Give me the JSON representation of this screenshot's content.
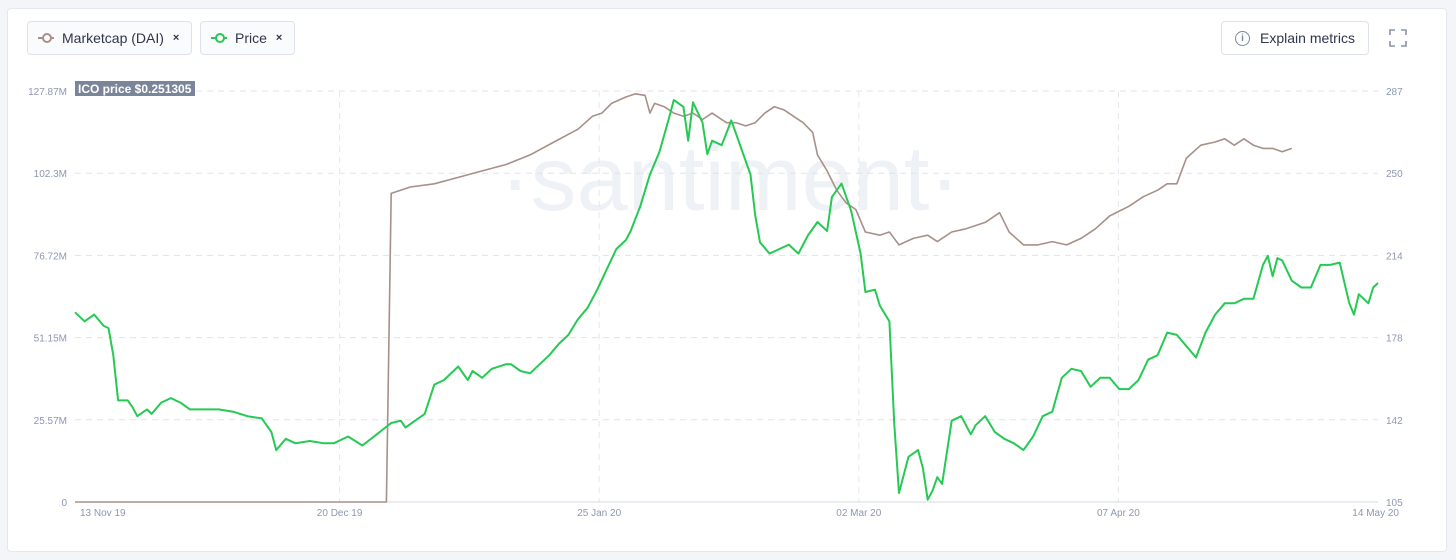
{
  "legend": [
    {
      "label": "Marketcap (DAI)",
      "color": "#a89088",
      "close": "×"
    },
    {
      "label": "Price",
      "color": "#26c953",
      "close": "×"
    }
  ],
  "toolbar": {
    "explain_label": "Explain metrics",
    "info_icon": "i",
    "fullscreen_icon": "expand-icon"
  },
  "watermark": "·santiment·",
  "ico_label": "ICO price $0.251305",
  "chart_data": {
    "type": "line",
    "x_labels": [
      "13 Nov 19",
      "20 Dec 19",
      "25 Jan 20",
      "02 Mar 20",
      "07 Apr 20",
      "14 May 20"
    ],
    "x_range": [
      "13 Nov 19",
      "14 May 20"
    ],
    "left_axis": {
      "ticks": [
        "127.87M",
        "102.3M",
        "76.72M",
        "51.15M",
        "25.57M",
        "0"
      ],
      "ylim": [
        0,
        127870000
      ],
      "series": "Marketcap (DAI)"
    },
    "right_axis": {
      "ticks": [
        "287",
        "250",
        "214",
        "178",
        "142",
        "105"
      ],
      "ylim": [
        105,
        287
      ],
      "series": "Price"
    },
    "series": [
      {
        "name": "Marketcap (DAI)",
        "axis": "left",
        "color": "#a89088",
        "points": [
          [
            0,
            0
          ],
          [
            20,
            0
          ],
          [
            40,
            0
          ],
          [
            60,
            0
          ],
          [
            65,
            0
          ],
          [
            66,
            96000000
          ],
          [
            70,
            98000000
          ],
          [
            75,
            99000000
          ],
          [
            80,
            101000000
          ],
          [
            85,
            103000000
          ],
          [
            90,
            105000000
          ],
          [
            95,
            108000000
          ],
          [
            100,
            112000000
          ],
          [
            105,
            116000000
          ],
          [
            108,
            120000000
          ],
          [
            110,
            121000000
          ],
          [
            112,
            124000000
          ],
          [
            115,
            126000000
          ],
          [
            117,
            127000000
          ],
          [
            119,
            126500000
          ],
          [
            120,
            121000000
          ],
          [
            121,
            124000000
          ],
          [
            123,
            123000000
          ],
          [
            125,
            121000000
          ],
          [
            127,
            120000000
          ],
          [
            129,
            121000000
          ],
          [
            131,
            119000000
          ],
          [
            133,
            121000000
          ],
          [
            134,
            120000000
          ],
          [
            136,
            118000000
          ],
          [
            138,
            118000000
          ],
          [
            140,
            117000000
          ],
          [
            142,
            118000000
          ],
          [
            144,
            121000000
          ],
          [
            146,
            123000000
          ],
          [
            148,
            122000000
          ],
          [
            150,
            120000000
          ],
          [
            152,
            118000000
          ],
          [
            154,
            115000000
          ],
          [
            155,
            108000000
          ],
          [
            157,
            103000000
          ],
          [
            159,
            97000000
          ],
          [
            161,
            93000000
          ],
          [
            163,
            91000000
          ],
          [
            165,
            84000000
          ],
          [
            168,
            83000000
          ],
          [
            170,
            84000000
          ],
          [
            172,
            80000000
          ],
          [
            175,
            82000000
          ],
          [
            178,
            83000000
          ],
          [
            180,
            81000000
          ],
          [
            183,
            84000000
          ],
          [
            186,
            85000000
          ],
          [
            190,
            87000000
          ],
          [
            193,
            90000000
          ],
          [
            195,
            84000000
          ],
          [
            198,
            80000000
          ],
          [
            201,
            80000000
          ],
          [
            204,
            81000000
          ],
          [
            207,
            80000000
          ],
          [
            210,
            82000000
          ],
          [
            213,
            85000000
          ],
          [
            216,
            89000000
          ],
          [
            220,
            92000000
          ],
          [
            223,
            95000000
          ],
          [
            226,
            97000000
          ],
          [
            228,
            99000000
          ],
          [
            230,
            99000000
          ],
          [
            232,
            107000000
          ],
          [
            235,
            111000000
          ],
          [
            238,
            112000000
          ],
          [
            240,
            113000000
          ],
          [
            242,
            111000000
          ],
          [
            244,
            113000000
          ],
          [
            246,
            111000000
          ],
          [
            248,
            110000000
          ],
          [
            250,
            110000000
          ],
          [
            252,
            109000000
          ],
          [
            254,
            110000000
          ]
        ]
      },
      {
        "name": "Price",
        "axis": "right",
        "color": "#26c953",
        "points": [
          [
            0,
            189
          ],
          [
            2,
            185
          ],
          [
            4,
            188
          ],
          [
            6,
            183
          ],
          [
            7,
            182
          ],
          [
            8,
            170
          ],
          [
            9,
            150
          ],
          [
            11,
            150
          ],
          [
            12,
            147
          ],
          [
            13,
            143
          ],
          [
            15,
            146
          ],
          [
            16,
            144
          ],
          [
            18,
            149
          ],
          [
            20,
            151
          ],
          [
            22,
            149
          ],
          [
            24,
            146
          ],
          [
            27,
            146
          ],
          [
            30,
            146
          ],
          [
            33,
            145
          ],
          [
            36,
            143
          ],
          [
            39,
            142
          ],
          [
            41,
            136
          ],
          [
            42,
            128
          ],
          [
            44,
            133
          ],
          [
            46,
            131
          ],
          [
            49,
            132
          ],
          [
            52,
            131
          ],
          [
            54,
            131
          ],
          [
            57,
            134
          ],
          [
            60,
            130
          ],
          [
            63,
            135
          ],
          [
            66,
            140
          ],
          [
            68,
            141
          ],
          [
            69,
            138
          ],
          [
            71,
            141
          ],
          [
            73,
            144
          ],
          [
            75,
            157
          ],
          [
            77,
            159
          ],
          [
            80,
            165
          ],
          [
            82,
            159
          ],
          [
            83,
            163
          ],
          [
            85,
            160
          ],
          [
            87,
            164
          ],
          [
            90,
            166
          ],
          [
            91,
            166
          ],
          [
            93,
            163
          ],
          [
            95,
            162
          ],
          [
            97,
            166
          ],
          [
            99,
            170
          ],
          [
            101,
            175
          ],
          [
            103,
            179
          ],
          [
            105,
            186
          ],
          [
            107,
            191
          ],
          [
            109,
            199
          ],
          [
            111,
            208
          ],
          [
            113,
            217
          ],
          [
            115,
            221
          ],
          [
            116,
            225
          ],
          [
            118,
            236
          ],
          [
            120,
            250
          ],
          [
            122,
            260
          ],
          [
            124,
            275
          ],
          [
            125,
            283
          ],
          [
            127,
            280
          ],
          [
            128,
            265
          ],
          [
            129,
            282
          ],
          [
            131,
            273
          ],
          [
            132,
            259
          ],
          [
            133,
            265
          ],
          [
            135,
            263
          ],
          [
            137,
            274
          ],
          [
            138,
            268
          ],
          [
            139,
            262
          ],
          [
            141,
            250
          ],
          [
            142,
            232
          ],
          [
            143,
            220
          ],
          [
            145,
            215
          ],
          [
            147,
            217
          ],
          [
            149,
            219
          ],
          [
            151,
            215
          ],
          [
            153,
            223
          ],
          [
            155,
            229
          ],
          [
            157,
            225
          ],
          [
            158,
            240
          ],
          [
            160,
            246
          ],
          [
            162,
            234
          ],
          [
            164,
            215
          ],
          [
            165,
            198
          ],
          [
            167,
            199
          ],
          [
            168,
            192
          ],
          [
            170,
            185
          ],
          [
            171,
            140
          ],
          [
            172,
            109
          ],
          [
            174,
            125
          ],
          [
            176,
            128
          ],
          [
            177,
            120
          ],
          [
            178,
            106
          ],
          [
            179,
            110
          ],
          [
            180,
            116
          ],
          [
            181,
            113
          ],
          [
            183,
            141
          ],
          [
            185,
            143
          ],
          [
            187,
            135
          ],
          [
            188,
            139
          ],
          [
            190,
            143
          ],
          [
            192,
            136
          ],
          [
            194,
            133
          ],
          [
            196,
            131
          ],
          [
            198,
            128
          ],
          [
            200,
            134
          ],
          [
            202,
            143
          ],
          [
            204,
            145
          ],
          [
            206,
            160
          ],
          [
            208,
            164
          ],
          [
            210,
            163
          ],
          [
            212,
            156
          ],
          [
            214,
            160
          ],
          [
            216,
            160
          ],
          [
            218,
            155
          ],
          [
            220,
            155
          ],
          [
            222,
            159
          ],
          [
            224,
            168
          ],
          [
            226,
            170
          ],
          [
            228,
            180
          ],
          [
            230,
            179
          ],
          [
            232,
            174
          ],
          [
            234,
            169
          ],
          [
            236,
            180
          ],
          [
            238,
            188
          ],
          [
            240,
            193
          ],
          [
            242,
            193
          ],
          [
            244,
            195
          ],
          [
            246,
            195
          ],
          [
            248,
            210
          ],
          [
            249,
            214
          ],
          [
            250,
            205
          ],
          [
            251,
            213
          ],
          [
            252,
            212
          ],
          [
            254,
            203
          ],
          [
            256,
            200
          ],
          [
            258,
            200
          ],
          [
            260,
            210
          ],
          [
            262,
            210
          ],
          [
            264,
            211
          ],
          [
            266,
            193
          ],
          [
            267,
            188
          ],
          [
            268,
            197
          ],
          [
            270,
            193
          ],
          [
            271,
            200
          ],
          [
            272,
            202
          ]
        ]
      }
    ],
    "grid": true,
    "annotation": {
      "text": "ICO price $0.251305",
      "axis": "left"
    }
  }
}
